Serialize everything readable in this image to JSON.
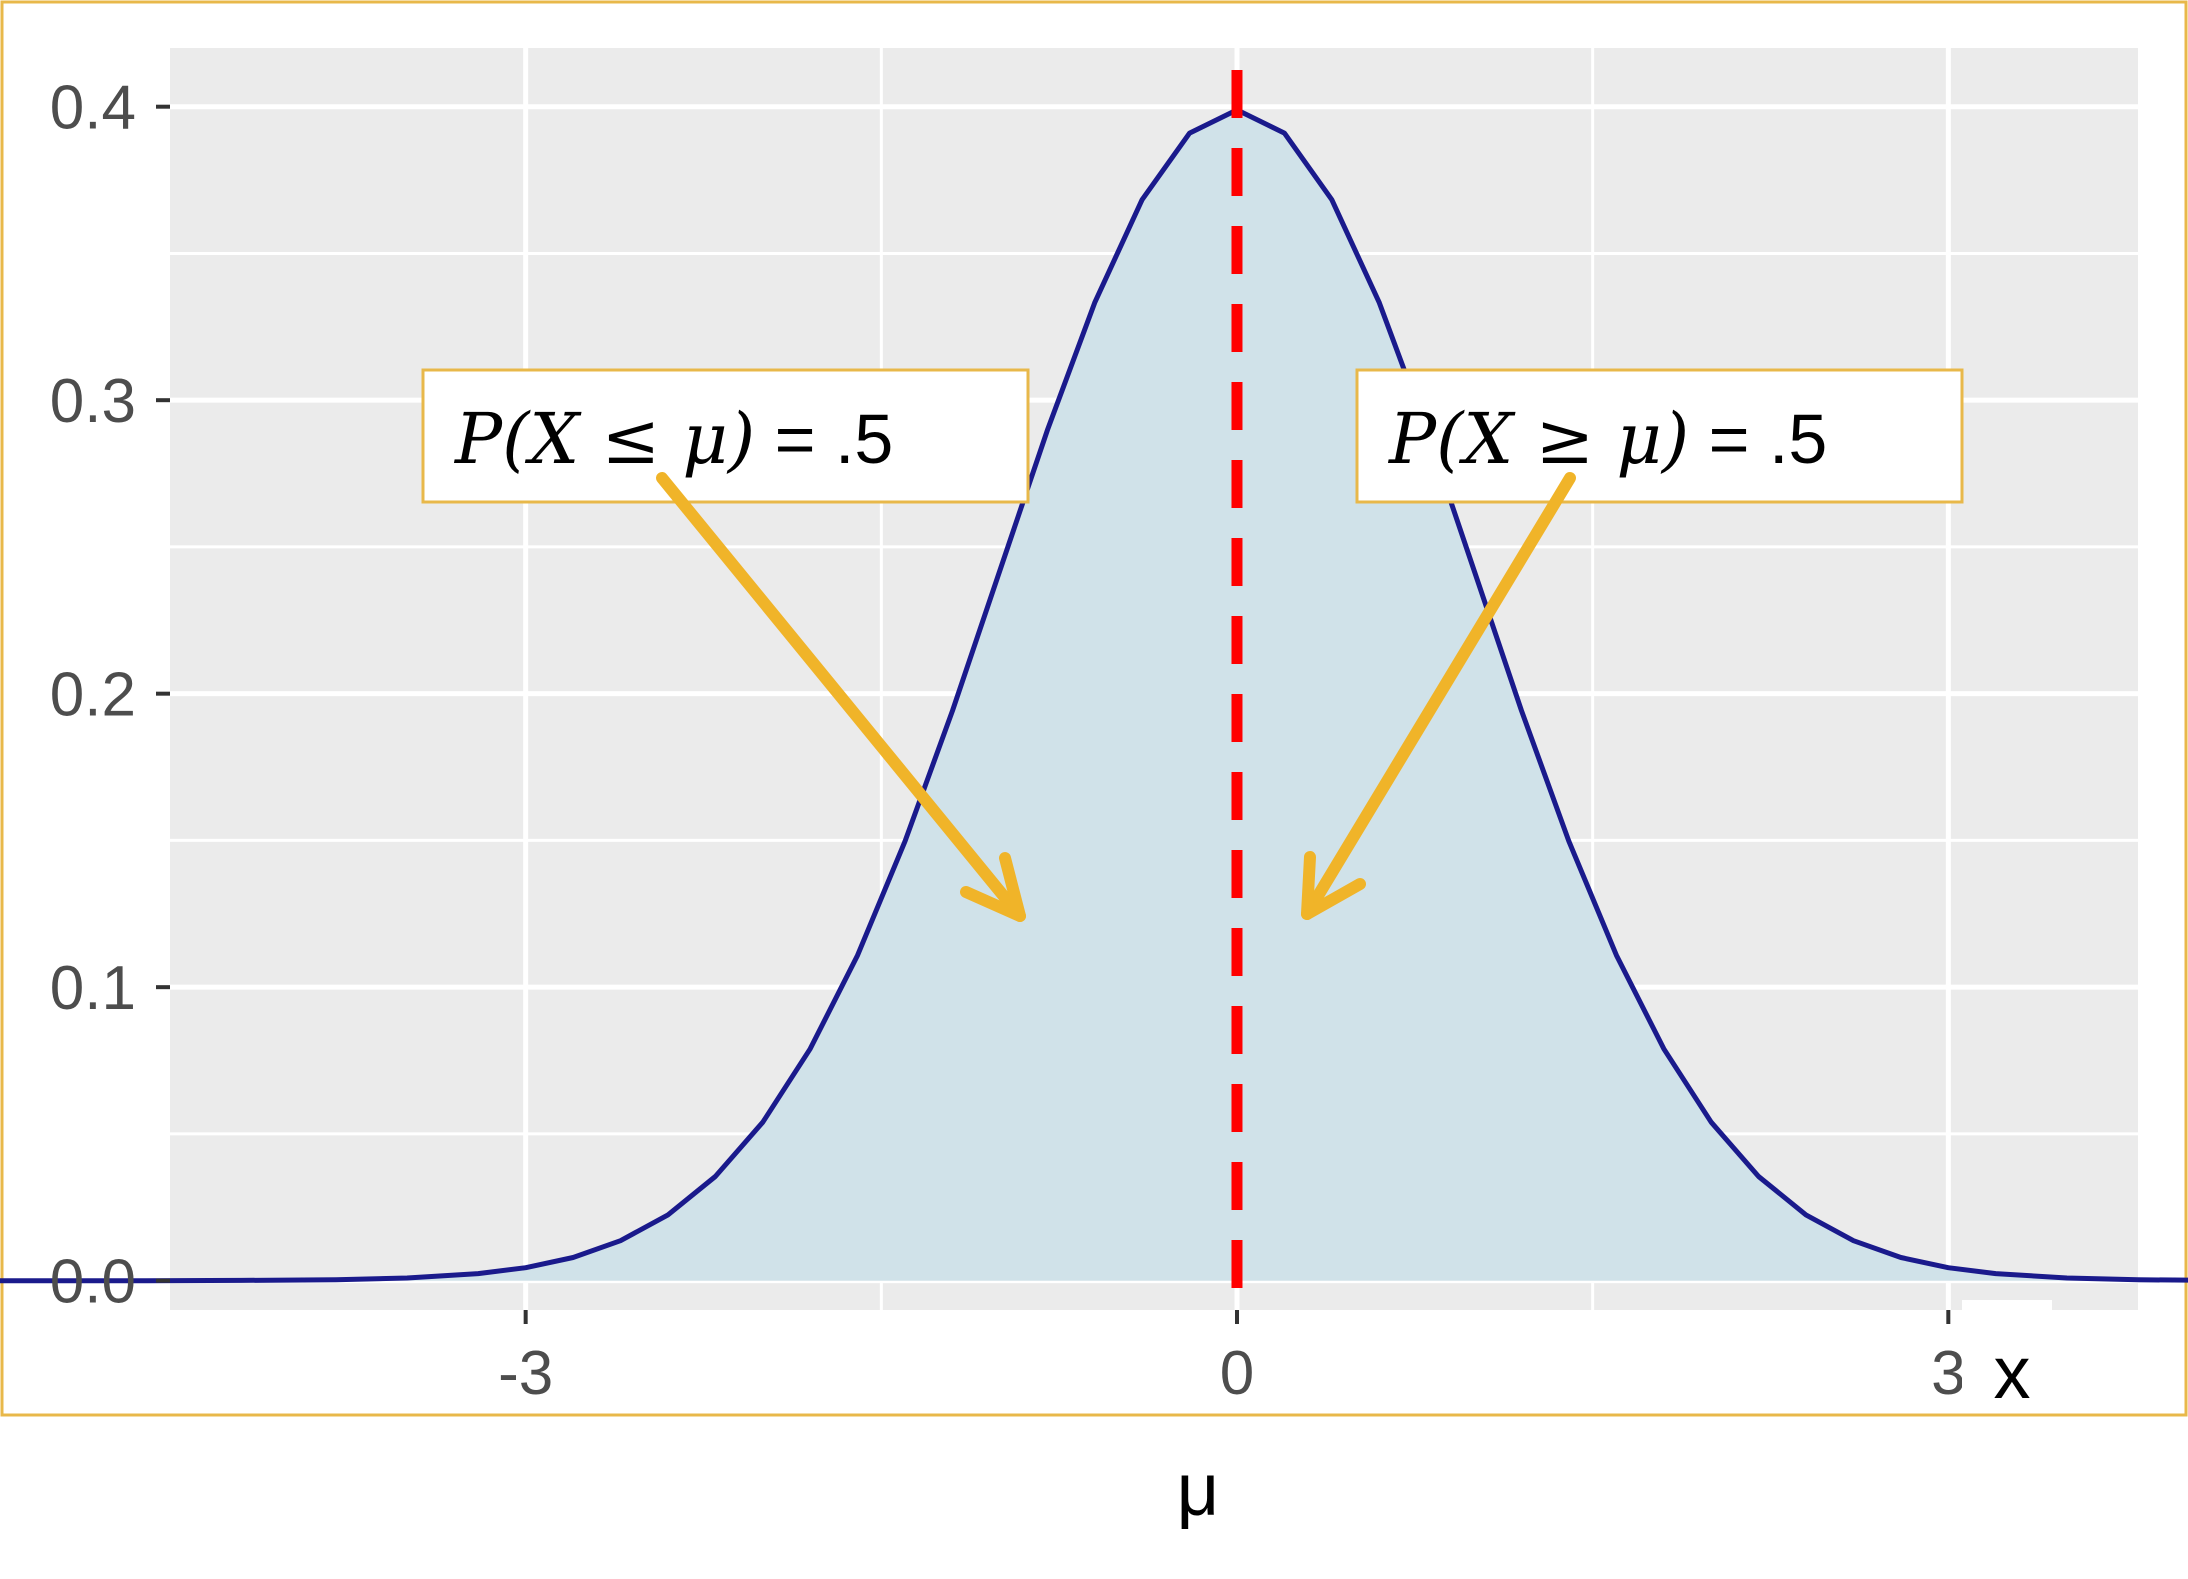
{
  "chart_data": {
    "type": "area",
    "title": "",
    "xlabel": "x",
    "ylabel": "",
    "mean_label": "μ",
    "xlim": [
      -4.5,
      3.8
    ],
    "ylim": [
      -0.01,
      0.42
    ],
    "x_ticks": [
      -3,
      0,
      3
    ],
    "x_tick_labels": [
      "-3",
      "0",
      "3"
    ],
    "y_ticks": [
      0.0,
      0.1,
      0.2,
      0.3,
      0.4
    ],
    "y_tick_labels": [
      "0.0",
      "0.1",
      "0.2",
      "0.3",
      "0.4"
    ],
    "grid": true,
    "legend": "none",
    "series": [
      {
        "x": [
          -5.4,
          -5.0,
          -4.6,
          -4.2,
          -3.8,
          -3.5,
          -3.2,
          -3.0,
          -2.8,
          -2.6,
          -2.4,
          -2.2,
          -2.0,
          -1.8,
          -1.6,
          -1.4,
          -1.2,
          -1.0,
          -0.8,
          -0.6,
          -0.4,
          -0.2,
          0.0,
          0.2,
          0.4,
          0.6,
          0.8,
          1.0,
          1.2,
          1.4,
          1.6,
          1.8,
          2.0,
          2.2,
          2.4,
          2.6,
          2.8,
          3.0,
          3.2,
          3.5,
          3.8,
          4.2,
          4.6,
          5.0,
          5.2
        ],
        "y": [
          0.0,
          0.0,
          0.0,
          0.0001,
          0.0003,
          0.0009,
          0.0024,
          0.0044,
          0.0079,
          0.0136,
          0.0224,
          0.0355,
          0.054,
          0.079,
          0.1109,
          0.1497,
          0.1942,
          0.242,
          0.2897,
          0.3332,
          0.3683,
          0.391,
          0.3989,
          0.391,
          0.3683,
          0.3332,
          0.2897,
          0.242,
          0.1942,
          0.1497,
          0.1109,
          0.079,
          0.054,
          0.0355,
          0.0224,
          0.0136,
          0.0079,
          0.0044,
          0.0024,
          0.0009,
          0.0003,
          0.0001,
          0.0,
          0.0,
          0.0
        ]
      }
    ],
    "mean_line_x": 0,
    "annotations": [
      {
        "id": "left",
        "math": "P(X ≤ μ)",
        "text": " = .5",
        "arrow_to": [
          -0.9,
          0.117
        ]
      },
      {
        "id": "right",
        "math": "P(X ≥ μ)",
        "text": " = .5",
        "arrow_to": [
          0.8,
          0.117
        ]
      }
    ],
    "colors": {
      "panel": "#ebebeb",
      "grid": "#ffffff",
      "fill": "#d0e2e9",
      "curve": "#1a1a8c",
      "mean_line": "#ff0000",
      "arrow": "#f0b429",
      "frame": "#e8b84a",
      "tick_text": "#4d4d4d"
    }
  }
}
